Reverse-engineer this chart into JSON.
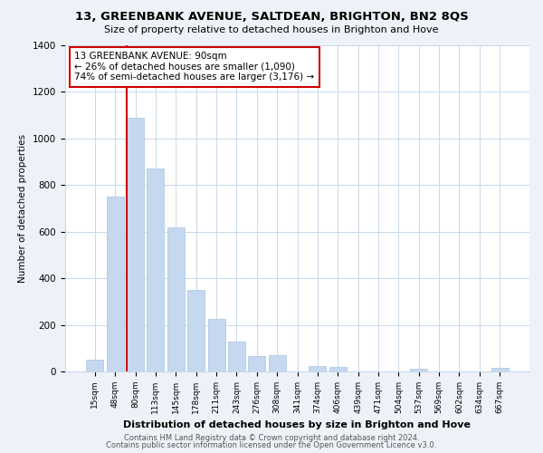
{
  "title1": "13, GREENBANK AVENUE, SALTDEAN, BRIGHTON, BN2 8QS",
  "title2": "Size of property relative to detached houses in Brighton and Hove",
  "xlabel": "Distribution of detached houses by size in Brighton and Hove",
  "ylabel": "Number of detached properties",
  "bar_labels": [
    "15sqm",
    "48sqm",
    "80sqm",
    "113sqm",
    "145sqm",
    "178sqm",
    "211sqm",
    "243sqm",
    "276sqm",
    "308sqm",
    "341sqm",
    "374sqm",
    "406sqm",
    "439sqm",
    "471sqm",
    "504sqm",
    "537sqm",
    "569sqm",
    "602sqm",
    "634sqm",
    "667sqm"
  ],
  "bar_values": [
    50,
    750,
    1090,
    870,
    620,
    350,
    225,
    130,
    65,
    70,
    0,
    25,
    20,
    0,
    0,
    0,
    10,
    0,
    0,
    0,
    15
  ],
  "bar_color": "#c5d8f0",
  "bar_edge_color": "#a8c4e0",
  "vline_color": "#cc0000",
  "vline_x_index": 2,
  "annotation_text": "13 GREENBANK AVENUE: 90sqm\n← 26% of detached houses are smaller (1,090)\n74% of semi-detached houses are larger (3,176) →",
  "annotation_box_color": "#ffffff",
  "annotation_box_edge": "#cc0000",
  "ylim": [
    0,
    1400
  ],
  "yticks": [
    0,
    200,
    400,
    600,
    800,
    1000,
    1200,
    1400
  ],
  "footer1": "Contains HM Land Registry data © Crown copyright and database right 2024.",
  "footer2": "Contains public sector information licensed under the Open Government Licence v3.0.",
  "bg_color": "#eef2f8",
  "plot_bg_color": "#ffffff",
  "grid_color": "#c8d8eb"
}
